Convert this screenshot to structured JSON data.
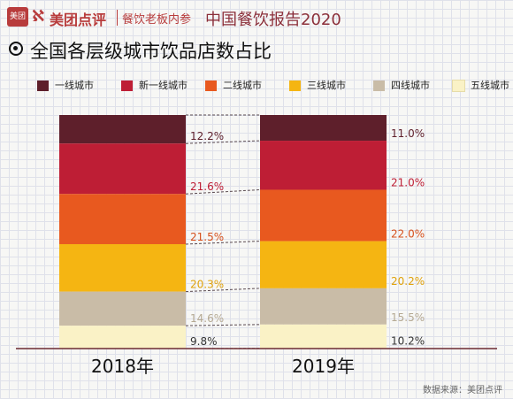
{
  "header": {
    "logo_badge": "美团",
    "logo_mark": "ℵ",
    "brand": "美团点评",
    "sub": "餐饮老板内参",
    "report": "中国餐饮报告2020"
  },
  "title": "全国各层级城市饮品店数占比",
  "source": "数据来源：美团点评",
  "chart_data": {
    "type": "bar",
    "stacked": true,
    "title": "全国各层级城市饮品店数占比",
    "categories": [
      "2018年",
      "2019年"
    ],
    "series": [
      {
        "name": "一线城市",
        "color": "#5e1f2b",
        "label_color": "#5e1f2b",
        "values": [
          12.2,
          11.0
        ]
      },
      {
        "name": "新一线城市",
        "color": "#be1e35",
        "label_color": "#be1e35",
        "values": [
          21.6,
          21.0
        ]
      },
      {
        "name": "二线城市",
        "color": "#e8591f",
        "label_color": "#d6501d",
        "values": [
          21.5,
          22.0
        ]
      },
      {
        "name": "三线城市",
        "color": "#f5b512",
        "label_color": "#e0a20b",
        "values": [
          20.3,
          20.2
        ]
      },
      {
        "name": "四线城市",
        "color": "#c9bca7",
        "label_color": "#b5a993",
        "values": [
          14.6,
          15.5
        ]
      },
      {
        "name": "五线城市",
        "color": "#faf2c6",
        "label_color": "#333333",
        "values": [
          9.8,
          10.2
        ]
      }
    ],
    "value_labels": [
      [
        "12.2%",
        "21.6%",
        "21.5%",
        "20.3%",
        "14.6%",
        "9.8%"
      ],
      [
        "11.0%",
        "21.0%",
        "22.0%",
        "20.2%",
        "15.5%",
        "10.2%"
      ]
    ],
    "ylim": [
      0,
      100
    ],
    "legend_position": "top",
    "grid": true
  }
}
